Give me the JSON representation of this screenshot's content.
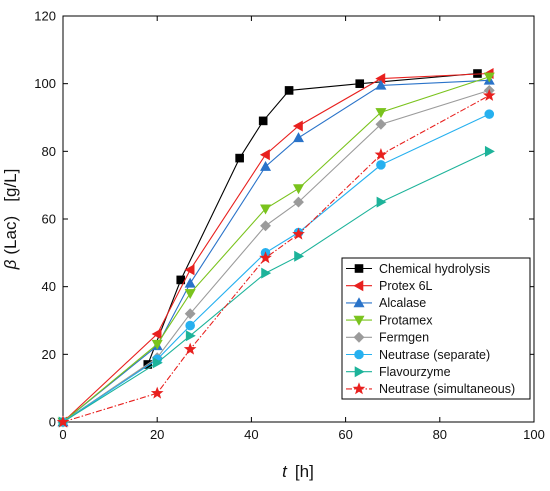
{
  "chart_data": {
    "type": "line",
    "xlabel": {
      "symbol": "t",
      "unit": "[h]"
    },
    "ylabel": {
      "symbol": "β",
      "unit": "(Lac)   [g/L]"
    },
    "xlim": [
      0,
      100
    ],
    "ylim": [
      0,
      120
    ],
    "xticks": [
      "0",
      "20",
      "40",
      "60",
      "80",
      "100"
    ],
    "yticks": [
      "0",
      "20",
      "40",
      "60",
      "80",
      "100",
      "120"
    ],
    "grid": false,
    "legend_position": "bottom-right",
    "series": [
      {
        "name": "Chemical hydrolysis",
        "color": "#000000",
        "marker": "square",
        "dash": "solid",
        "x": [
          0,
          18,
          25,
          37.5,
          42.5,
          48,
          63,
          88
        ],
        "y": [
          0,
          17,
          42,
          78,
          89,
          98,
          100,
          103
        ]
      },
      {
        "name": "Protex 6L",
        "color": "#e8201e",
        "marker": "triangle-left",
        "dash": "solid",
        "x": [
          0,
          20,
          27,
          43,
          50,
          67.5,
          90.5
        ],
        "y": [
          0,
          26,
          45,
          79,
          87.5,
          101.5,
          103
        ]
      },
      {
        "name": "Alcalase",
        "color": "#2a73c9",
        "marker": "triangle-up",
        "dash": "solid",
        "x": [
          0,
          20,
          27,
          43,
          50,
          67.5,
          90.5
        ],
        "y": [
          0,
          22.5,
          41,
          75.5,
          84,
          99.5,
          101
        ]
      },
      {
        "name": "Protamex",
        "color": "#7ac31d",
        "marker": "triangle-down",
        "dash": "solid",
        "x": [
          0,
          20,
          27,
          43,
          50,
          67.5,
          90.5
        ],
        "y": [
          0,
          23,
          38,
          63,
          69,
          91.5,
          102
        ]
      },
      {
        "name": "Fermgen",
        "color": "#9b9b9b",
        "marker": "diamond",
        "dash": "solid",
        "x": [
          0,
          20,
          27,
          43,
          50,
          67.5,
          90.5
        ],
        "y": [
          0,
          19,
          32,
          58,
          65,
          88,
          98
        ]
      },
      {
        "name": "Neutrase (separate)",
        "color": "#26b0ef",
        "marker": "circle",
        "dash": "solid",
        "x": [
          0,
          20,
          27,
          43,
          50,
          67.5,
          90.5
        ],
        "y": [
          0,
          18.5,
          28.5,
          50,
          56,
          76,
          91
        ]
      },
      {
        "name": "Flavourzyme",
        "color": "#1db39a",
        "marker": "triangle-right",
        "dash": "solid",
        "x": [
          0,
          20,
          27,
          43,
          50,
          67.5,
          90.5
        ],
        "y": [
          0,
          17.5,
          25.5,
          44,
          49,
          65,
          80
        ]
      },
      {
        "name": "Neutrase (simultaneous)",
        "color": "#e8201e",
        "marker": "star",
        "dash": "dashdot",
        "x": [
          0,
          20,
          27,
          43,
          50,
          67.5,
          90.5
        ],
        "y": [
          0,
          8.5,
          21.5,
          48.5,
          55.5,
          79,
          96.5
        ]
      }
    ]
  }
}
